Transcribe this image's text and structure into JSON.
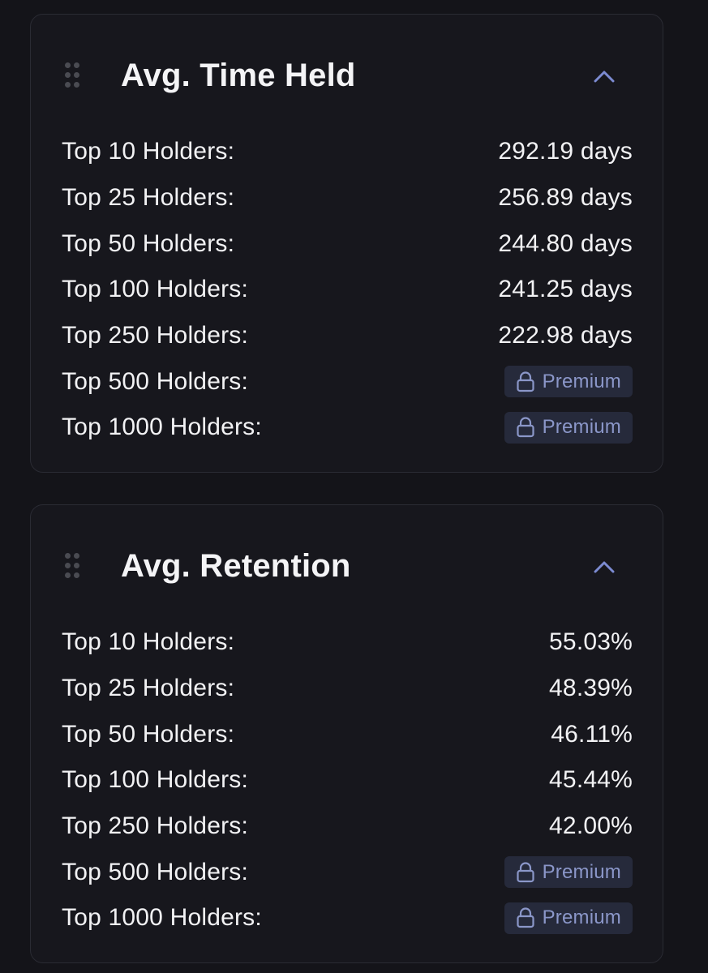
{
  "colors": {
    "background": "#141419",
    "card": "#17171d",
    "accent": "#7c8bd1",
    "premium_badge_bg": "#262a3b",
    "premium_text": "#8b97c9"
  },
  "cards": [
    {
      "title": "Avg. Time Held",
      "collapse_icon": "chevron-up-icon",
      "drag_icon": "drag-handle-icon",
      "rows": [
        {
          "label": "Top 10 Holders:",
          "value": "292.19 days",
          "locked": false
        },
        {
          "label": "Top 25 Holders:",
          "value": "256.89 days",
          "locked": false
        },
        {
          "label": "Top 50 Holders:",
          "value": "244.80 days",
          "locked": false
        },
        {
          "label": "Top 100 Holders:",
          "value": "241.25 days",
          "locked": false
        },
        {
          "label": "Top 250 Holders:",
          "value": "222.98 days",
          "locked": false
        },
        {
          "label": "Top 500 Holders:",
          "value": "Premium",
          "locked": true
        },
        {
          "label": "Top 1000 Holders:",
          "value": "Premium",
          "locked": true
        }
      ]
    },
    {
      "title": "Avg. Retention",
      "collapse_icon": "chevron-up-icon",
      "drag_icon": "drag-handle-icon",
      "rows": [
        {
          "label": "Top 10 Holders:",
          "value": "55.03%",
          "locked": false
        },
        {
          "label": "Top 25 Holders:",
          "value": "48.39%",
          "locked": false
        },
        {
          "label": "Top 50 Holders:",
          "value": "46.11%",
          "locked": false
        },
        {
          "label": "Top 100 Holders:",
          "value": "45.44%",
          "locked": false
        },
        {
          "label": "Top 250 Holders:",
          "value": "42.00%",
          "locked": false
        },
        {
          "label": "Top 500 Holders:",
          "value": "Premium",
          "locked": true
        },
        {
          "label": "Top 1000 Holders:",
          "value": "Premium",
          "locked": true
        }
      ]
    }
  ]
}
